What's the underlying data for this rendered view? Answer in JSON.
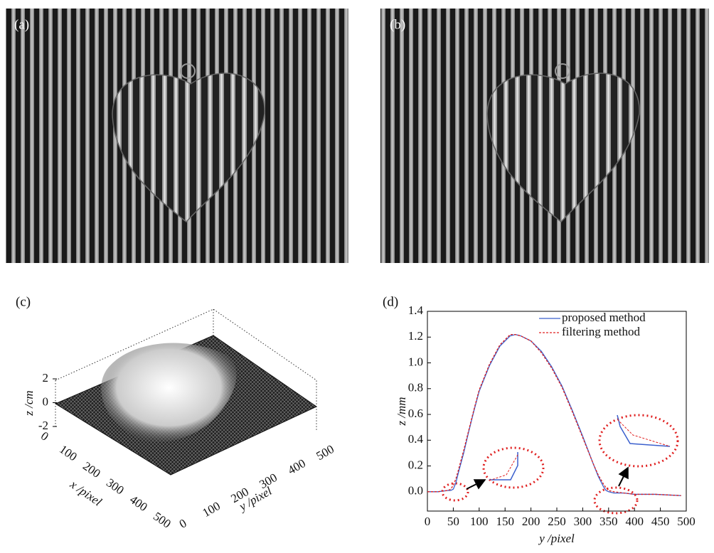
{
  "panel_labels": [
    "(a)",
    "(b)",
    "(c)",
    "(d)"
  ],
  "surface_plot": {
    "xlabel": "x /pixel",
    "ylabel": "y /pixel",
    "zlabel": "z /cm",
    "xticks": [
      0,
      100,
      200,
      300,
      400,
      500
    ],
    "yticks": [
      0,
      100,
      200,
      300,
      400,
      500
    ],
    "zticks": [
      2,
      0,
      -2
    ]
  },
  "chart_data": {
    "type": "line",
    "xlabel": "y /pixel",
    "ylabel": "z /mm",
    "x": [
      0,
      20,
      40,
      45,
      50,
      55,
      60,
      70,
      80,
      90,
      100,
      120,
      140,
      160,
      170,
      180,
      200,
      220,
      240,
      260,
      280,
      300,
      320,
      330,
      340,
      345,
      350,
      360,
      380,
      400,
      440,
      490
    ],
    "series": [
      {
        "name": "proposed method",
        "color": "#3a5fcd",
        "style": "solid",
        "values": [
          0,
          0,
          0.01,
          0.01,
          0.02,
          0.07,
          0.15,
          0.3,
          0.47,
          0.63,
          0.78,
          0.98,
          1.13,
          1.21,
          1.22,
          1.21,
          1.17,
          1.09,
          0.97,
          0.82,
          0.63,
          0.43,
          0.22,
          0.12,
          0.04,
          0.01,
          0,
          -0.01,
          -0.01,
          -0.02,
          -0.02,
          -0.03
        ]
      },
      {
        "name": "filtering method",
        "color": "#e02020",
        "style": "dashed",
        "values": [
          0,
          0,
          0.01,
          0.02,
          0.05,
          0.1,
          0.17,
          0.32,
          0.48,
          0.64,
          0.79,
          0.99,
          1.14,
          1.22,
          1.22,
          1.21,
          1.17,
          1.08,
          0.96,
          0.81,
          0.62,
          0.42,
          0.22,
          0.13,
          0.06,
          0.03,
          0.01,
          0,
          -0.01,
          -0.02,
          -0.02,
          -0.03
        ]
      }
    ],
    "xlim": [
      0,
      500
    ],
    "ylim": [
      -0.15,
      1.4
    ],
    "xticks": [
      0,
      50,
      100,
      150,
      200,
      250,
      300,
      350,
      400,
      450,
      500
    ],
    "yticks": [
      {
        "value": 0,
        "label": "0.0"
      },
      0.2,
      0.4,
      0.6,
      0.8,
      {
        "value": 1,
        "label": "1.0"
      },
      1.2,
      1.4
    ],
    "legend": "top-right"
  }
}
